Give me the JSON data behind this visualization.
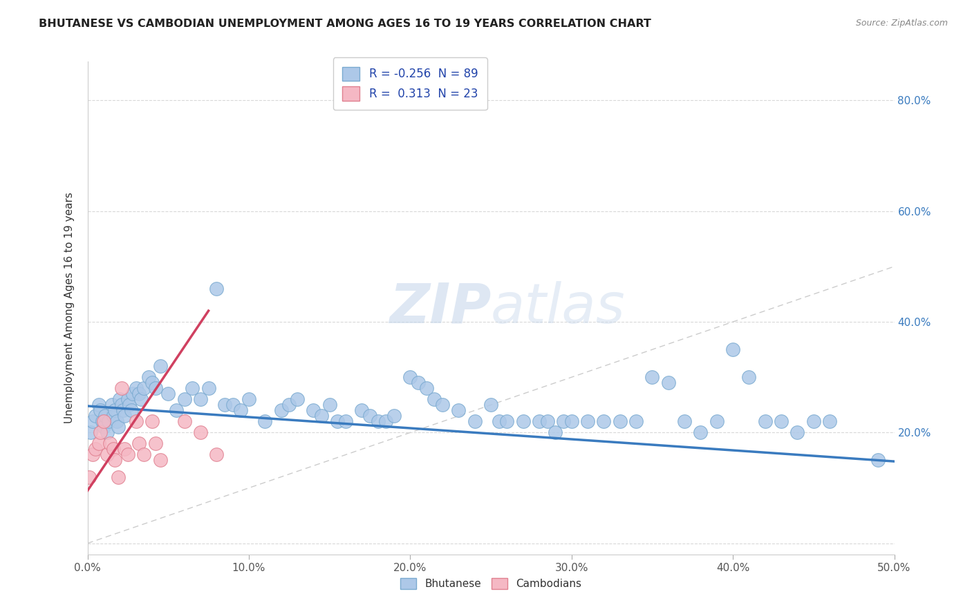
{
  "title": "BHUTANESE VS CAMBODIAN UNEMPLOYMENT AMONG AGES 16 TO 19 YEARS CORRELATION CHART",
  "source": "Source: ZipAtlas.com",
  "ylabel": "Unemployment Among Ages 16 to 19 years",
  "xlim": [
    0.0,
    0.5
  ],
  "ylim": [
    -0.02,
    0.87
  ],
  "xticks": [
    0.0,
    0.1,
    0.2,
    0.3,
    0.4,
    0.5
  ],
  "yticks": [
    0.0,
    0.2,
    0.4,
    0.6,
    0.8
  ],
  "xticklabels": [
    "0.0%",
    "10.0%",
    "20.0%",
    "30.0%",
    "40.0%",
    "50.0%"
  ],
  "yticklabels_right": [
    "",
    "20.0%",
    "40.0%",
    "60.0%",
    "80.0%"
  ],
  "bhutanese_R": "-0.256",
  "bhutanese_N": "89",
  "cambodian_R": "0.313",
  "cambodian_N": "23",
  "blue_scatter_color": "#adc8e8",
  "pink_scatter_color": "#f5b8c4",
  "blue_edge_color": "#7aaad0",
  "pink_edge_color": "#e08090",
  "blue_line_color": "#3a7bbf",
  "pink_line_color": "#d04060",
  "legend_R_color": "#2244aa",
  "grid_color": "#d8d8d8",
  "diag_color": "#cccccc",
  "watermark": "ZIPatlas",
  "bhutanese_x": [
    0.002,
    0.003,
    0.005,
    0.007,
    0.008,
    0.009,
    0.01,
    0.011,
    0.012,
    0.013,
    0.015,
    0.016,
    0.017,
    0.018,
    0.019,
    0.02,
    0.021,
    0.022,
    0.023,
    0.025,
    0.026,
    0.027,
    0.028,
    0.03,
    0.032,
    0.033,
    0.035,
    0.038,
    0.04,
    0.042,
    0.045,
    0.05,
    0.055,
    0.06,
    0.065,
    0.07,
    0.075,
    0.08,
    0.085,
    0.09,
    0.095,
    0.1,
    0.11,
    0.12,
    0.125,
    0.13,
    0.14,
    0.145,
    0.15,
    0.155,
    0.16,
    0.17,
    0.175,
    0.18,
    0.185,
    0.19,
    0.2,
    0.205,
    0.21,
    0.215,
    0.22,
    0.23,
    0.24,
    0.25,
    0.255,
    0.26,
    0.27,
    0.28,
    0.285,
    0.29,
    0.295,
    0.3,
    0.31,
    0.32,
    0.33,
    0.34,
    0.35,
    0.36,
    0.37,
    0.38,
    0.39,
    0.4,
    0.41,
    0.42,
    0.43,
    0.44,
    0.45,
    0.46,
    0.49
  ],
  "bhutanese_y": [
    0.2,
    0.22,
    0.23,
    0.25,
    0.24,
    0.22,
    0.21,
    0.23,
    0.2,
    0.22,
    0.25,
    0.23,
    0.24,
    0.22,
    0.21,
    0.26,
    0.25,
    0.24,
    0.23,
    0.26,
    0.25,
    0.24,
    0.27,
    0.28,
    0.27,
    0.26,
    0.28,
    0.3,
    0.29,
    0.28,
    0.32,
    0.27,
    0.24,
    0.26,
    0.28,
    0.26,
    0.28,
    0.46,
    0.25,
    0.25,
    0.24,
    0.26,
    0.22,
    0.24,
    0.25,
    0.26,
    0.24,
    0.23,
    0.25,
    0.22,
    0.22,
    0.24,
    0.23,
    0.22,
    0.22,
    0.23,
    0.3,
    0.29,
    0.28,
    0.26,
    0.25,
    0.24,
    0.22,
    0.25,
    0.22,
    0.22,
    0.22,
    0.22,
    0.22,
    0.2,
    0.22,
    0.22,
    0.22,
    0.22,
    0.22,
    0.22,
    0.3,
    0.29,
    0.22,
    0.2,
    0.22,
    0.35,
    0.3,
    0.22,
    0.22,
    0.2,
    0.22,
    0.22,
    0.15
  ],
  "cambodian_x": [
    0.001,
    0.003,
    0.005,
    0.007,
    0.008,
    0.01,
    0.012,
    0.014,
    0.016,
    0.017,
    0.019,
    0.021,
    0.023,
    0.025,
    0.03,
    0.032,
    0.035,
    0.04,
    0.042,
    0.045,
    0.06,
    0.07,
    0.08
  ],
  "cambodian_y": [
    0.12,
    0.16,
    0.17,
    0.18,
    0.2,
    0.22,
    0.16,
    0.18,
    0.17,
    0.15,
    0.12,
    0.28,
    0.17,
    0.16,
    0.22,
    0.18,
    0.16,
    0.22,
    0.18,
    0.15,
    0.22,
    0.2,
    0.16
  ]
}
